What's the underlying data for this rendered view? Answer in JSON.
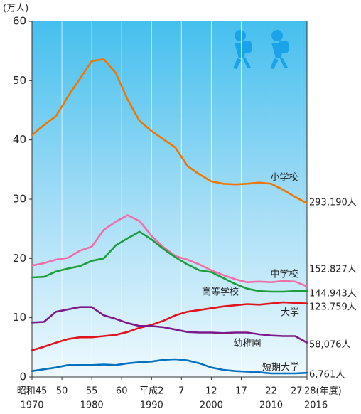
{
  "chart_data": {
    "type": "line",
    "y_label": "(万人)",
    "x": [
      1970,
      1972,
      1974,
      1976,
      1978,
      1980,
      1982,
      1984,
      1986,
      1988,
      1990,
      1992,
      1994,
      1996,
      1998,
      2000,
      2002,
      2004,
      2006,
      2008,
      2010,
      2012,
      2014,
      2016
    ],
    "series": [
      {
        "name": "小学校",
        "color": "#ee7700",
        "end_label": "293,190人",
        "values": [
          40.8,
          42.5,
          44.0,
          47.3,
          50.3,
          53.3,
          53.6,
          51.3,
          46.8,
          43.2,
          41.5,
          40.1,
          38.7,
          35.6,
          34.2,
          33.0,
          32.6,
          32.5,
          32.6,
          32.8,
          32.6,
          31.6,
          30.4,
          29.3
        ]
      },
      {
        "name": "中学校",
        "color": "#ee6fa8",
        "end_label": "152,827人",
        "values": [
          18.8,
          19.2,
          19.8,
          20.1,
          21.3,
          22.0,
          24.8,
          26.2,
          27.3,
          26.3,
          23.8,
          21.9,
          20.4,
          19.8,
          19.0,
          18.0,
          17.2,
          16.5,
          16.0,
          16.1,
          16.0,
          16.2,
          16.1,
          15.3
        ]
      },
      {
        "name": "高等学校",
        "color": "#1e9e3a",
        "end_label": "144,943人",
        "values": [
          16.8,
          16.9,
          17.8,
          18.3,
          18.7,
          19.6,
          20.0,
          22.2,
          23.4,
          24.5,
          23.2,
          21.6,
          20.2,
          19.0,
          18.0,
          17.7,
          16.7,
          15.7,
          14.9,
          14.5,
          14.4,
          14.4,
          14.5,
          14.5
        ]
      },
      {
        "name": "大学",
        "color": "#e0141e",
        "end_label": "123,759人",
        "values": [
          4.5,
          5.1,
          5.8,
          6.4,
          6.7,
          6.7,
          6.9,
          7.1,
          7.6,
          8.3,
          8.8,
          9.5,
          10.4,
          11.0,
          11.3,
          11.6,
          11.9,
          12.1,
          12.3,
          12.2,
          12.4,
          12.6,
          12.5,
          12.4
        ]
      },
      {
        "name": "幼稚園",
        "color": "#7d1a8a",
        "end_label": "58,076人",
        "values": [
          9.2,
          9.3,
          11.0,
          11.4,
          11.8,
          11.8,
          10.4,
          9.8,
          9.1,
          8.6,
          8.6,
          8.4,
          8.0,
          7.6,
          7.5,
          7.5,
          7.4,
          7.5,
          7.5,
          7.2,
          7.0,
          6.9,
          6.9,
          5.8
        ]
      },
      {
        "name": "短期大学",
        "color": "#0070c0",
        "end_label": "6,761人",
        "values": [
          1.0,
          1.3,
          1.6,
          2.0,
          2.0,
          2.0,
          2.1,
          2.0,
          2.3,
          2.5,
          2.6,
          2.9,
          3.0,
          2.8,
          2.3,
          1.6,
          1.2,
          1.0,
          0.9,
          0.8,
          0.6,
          0.6,
          0.6,
          0.7
        ]
      }
    ],
    "xlim": [
      1970,
      2016
    ],
    "ylim": [
      0,
      60
    ],
    "yticks": [
      0,
      10,
      20,
      30,
      40,
      50,
      60
    ],
    "xticks": [
      {
        "value": 1970,
        "label": "昭和45"
      },
      {
        "value": 1975,
        "label": "50"
      },
      {
        "value": 1980,
        "label": "55"
      },
      {
        "value": 1985,
        "label": "60"
      },
      {
        "value": 1990,
        "label": "平成2"
      },
      {
        "value": 1995,
        "label": "7"
      },
      {
        "value": 2000,
        "label": "12"
      },
      {
        "value": 2005,
        "label": "17"
      },
      {
        "value": 2010,
        "label": "22"
      },
      {
        "value": 2015,
        "label": "27"
      },
      {
        "value": 2016,
        "label": "28(年度)"
      }
    ],
    "xticks2": [
      1970,
      1980,
      1990,
      2000,
      2010,
      2016
    ],
    "grid": "x"
  }
}
